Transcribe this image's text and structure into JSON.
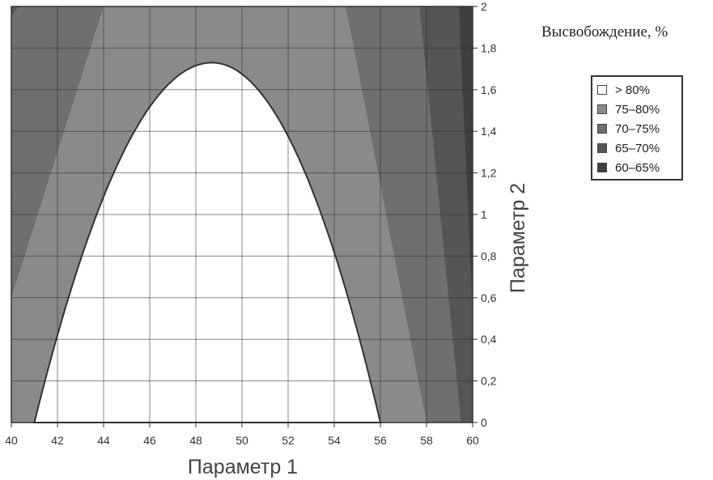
{
  "legend": {
    "title": "Высвобождение, %",
    "items": [
      {
        "label": "> 80%",
        "color": "#ffffff"
      },
      {
        "label": "75–80%",
        "color": "#8a8a8a"
      },
      {
        "label": "70–75%",
        "color": "#6f6f6f"
      },
      {
        "label": "65–70%",
        "color": "#555555"
      },
      {
        "label": "60–65%",
        "color": "#3f3f3f"
      }
    ]
  },
  "chart_data": {
    "type": "contour",
    "xlabel": "Параметр 1",
    "ylabel": "Параметр 2",
    "xlim": [
      40,
      60
    ],
    "ylim": [
      0,
      2
    ],
    "x_ticks": [
      "40",
      "42",
      "44",
      "46",
      "48",
      "50",
      "52",
      "54",
      "56",
      "58",
      "60"
    ],
    "y_ticks": [
      "0",
      "0,2",
      "0,4",
      "0,6",
      "0,8",
      "1",
      "1,2",
      "1,4",
      "1,6",
      "1,8",
      "2"
    ],
    "grid": true,
    "legend_position": "right",
    "regions": [
      {
        "level": "> 80%",
        "boundary_x_at_y0": [
          41,
          56
        ],
        "apex": [
          48.7,
          1.73
        ]
      },
      {
        "level": "75–80%",
        "left_boundary": [
          [
            40,
            0.6
          ],
          [
            44,
            2.0
          ]
        ],
        "right_boundary": [
          [
            58,
            0
          ],
          [
            54.5,
            2.0
          ]
        ]
      },
      {
        "level": "70–75%",
        "left_boundary": [
          [
            40,
            1.05
          ],
          [
            43.3,
            2.0
          ]
        ],
        "right_boundary": [
          [
            59.5,
            0
          ],
          [
            57.7,
            2.0
          ]
        ]
      },
      {
        "level": "65–70%",
        "left_boundary": [
          [
            40,
            1.95
          ],
          [
            40.3,
            2.0
          ]
        ],
        "right_boundary": [
          [
            60,
            0.55
          ],
          [
            59.4,
            2.0
          ]
        ]
      },
      {
        "level": "60–65%",
        "right_boundary": [
          [
            60,
            1.6
          ],
          [
            59.9,
            2.0
          ]
        ]
      }
    ]
  }
}
